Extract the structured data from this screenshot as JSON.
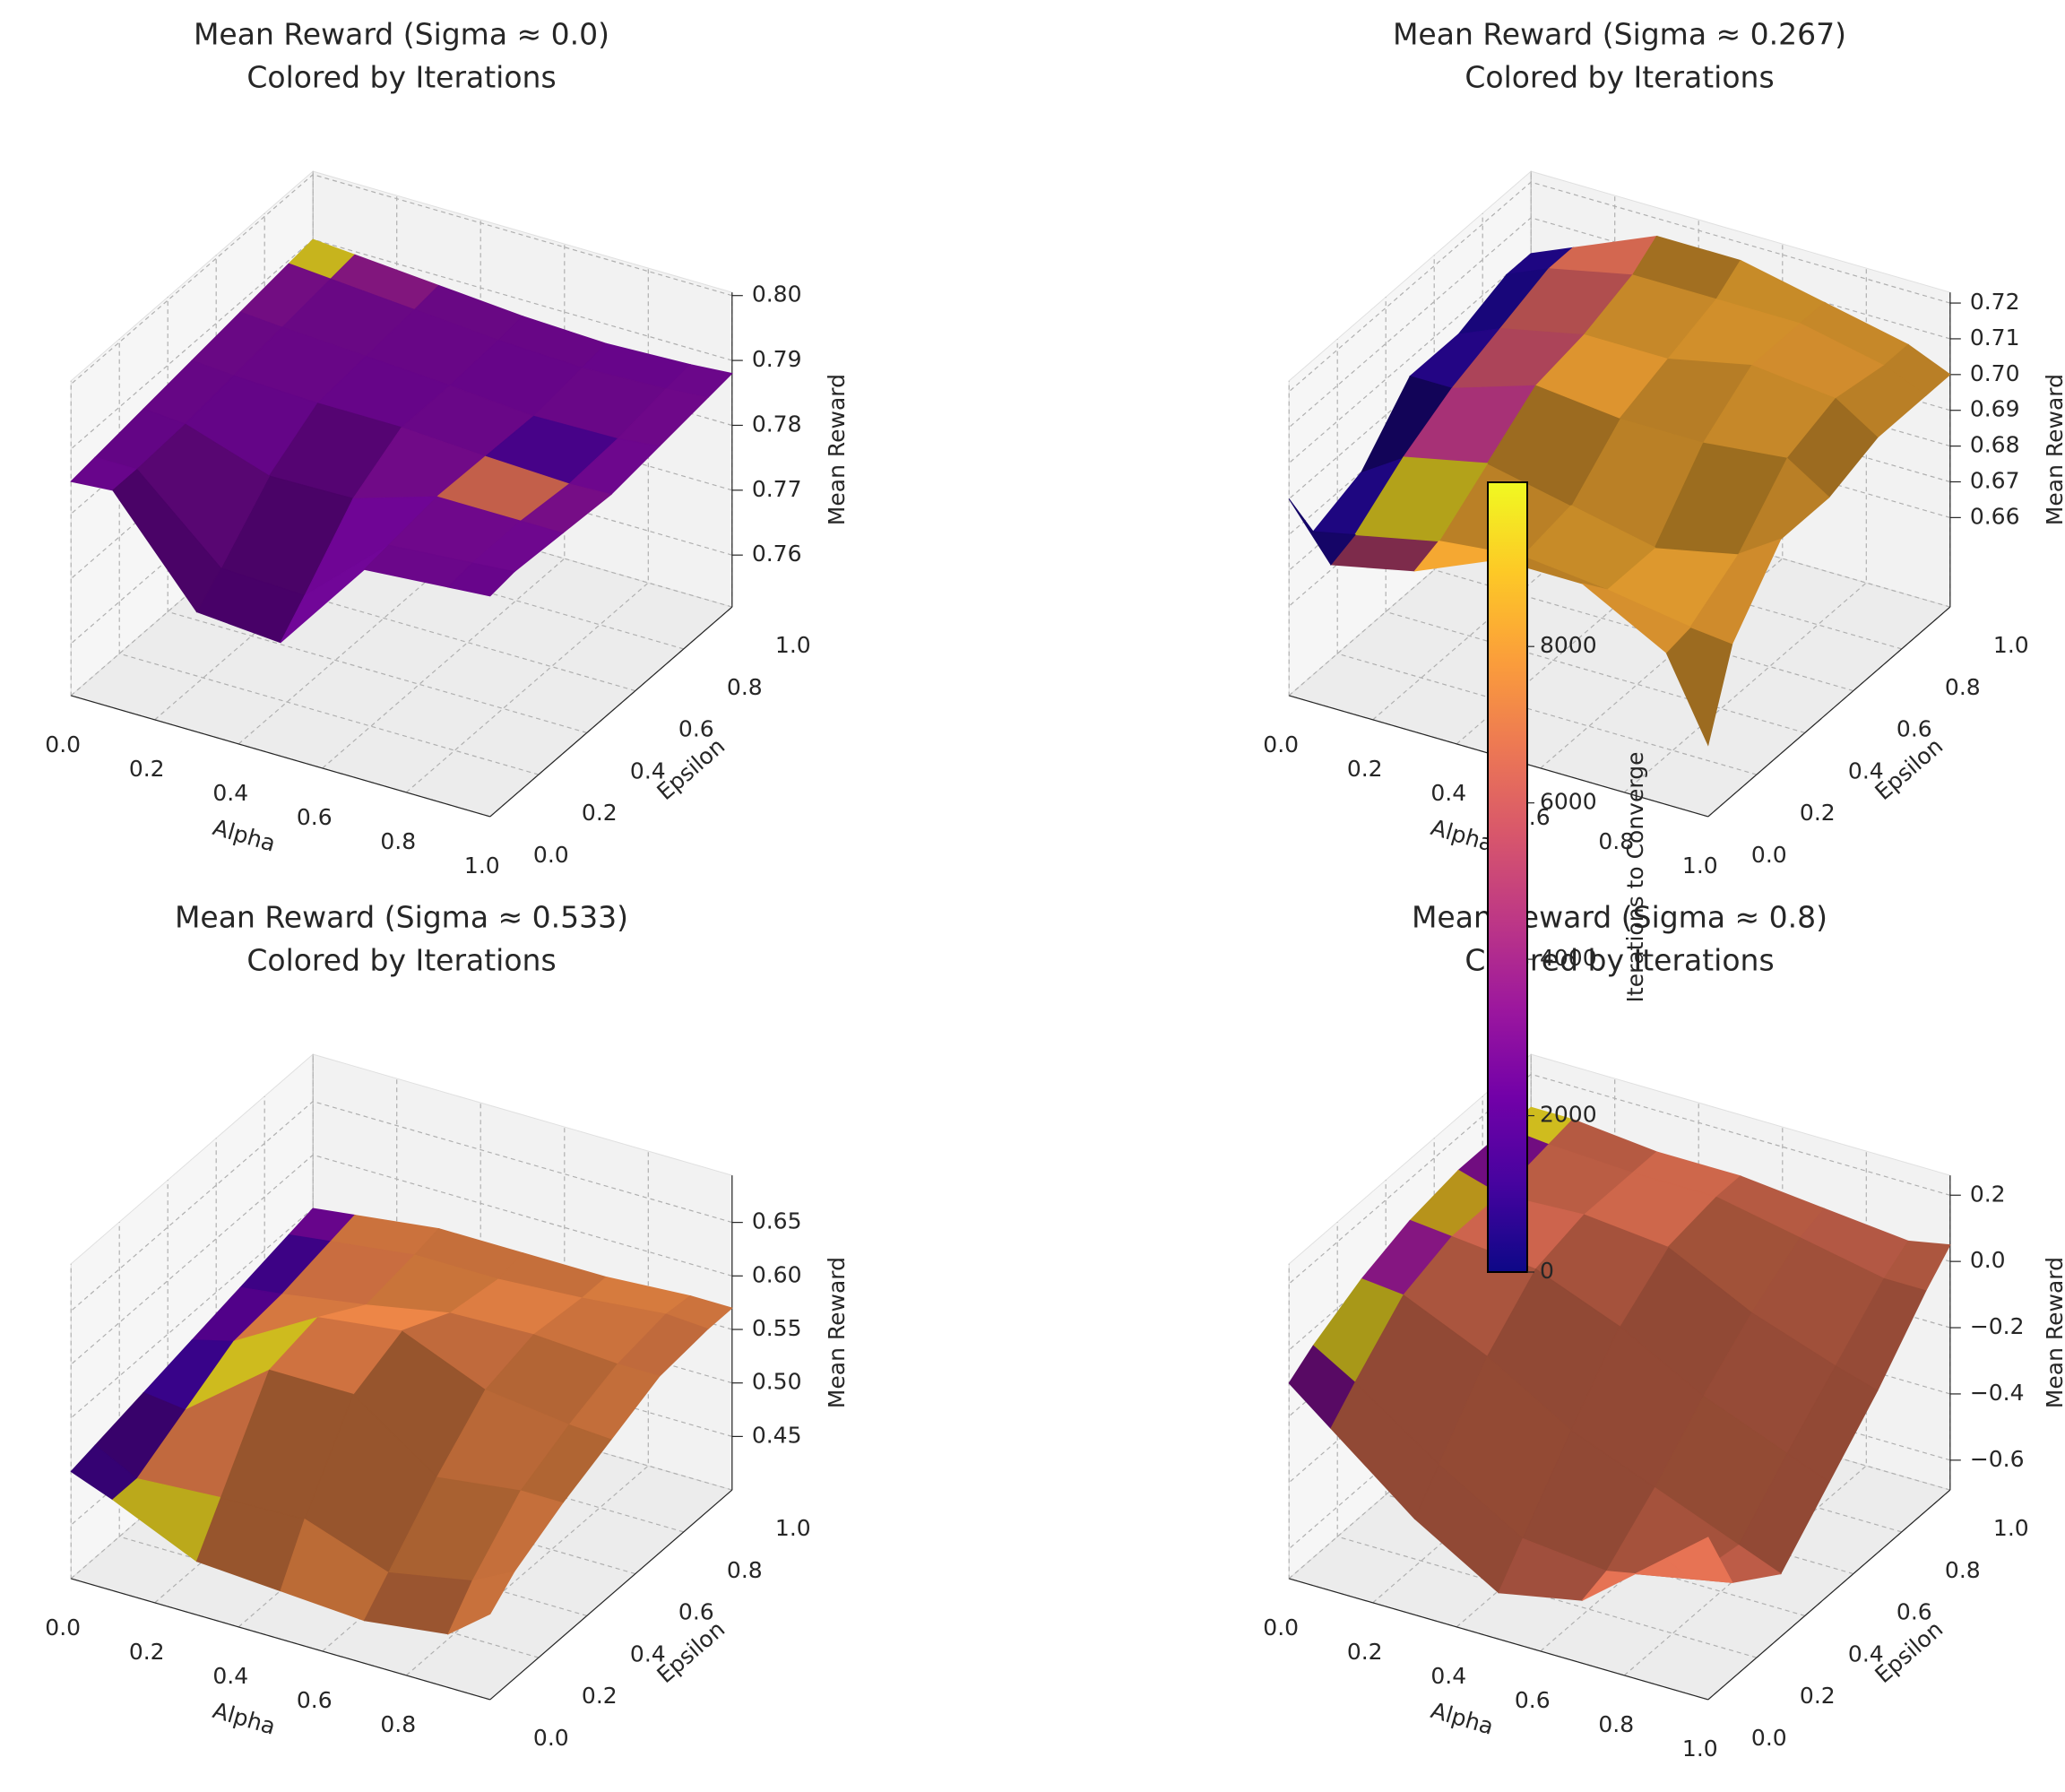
{
  "chart_data": [
    {
      "type": "surface3d",
      "title": "Mean Reward (Sigma ≈ 0.0)",
      "subtitle": "Colored by Iterations",
      "xlabel": "Alpha",
      "ylabel": "Epsilon",
      "zlabel": "Mean Reward",
      "x": [
        0,
        0.2,
        0.4,
        0.6,
        0.8,
        1.0
      ],
      "y": [
        0,
        0.2,
        0.4,
        0.6,
        0.8,
        1.0
      ],
      "values": [
        [
          0.785,
          0.786,
          0.755,
          0.784,
          0.785,
          0.786
        ],
        [
          0.786,
          0.785,
          0.77,
          0.785,
          0.786,
          0.787
        ],
        [
          0.787,
          0.786,
          0.786,
          0.787,
          0.786,
          0.785
        ],
        [
          0.788,
          0.787,
          0.787,
          0.786,
          0.784,
          0.786
        ],
        [
          0.789,
          0.788,
          0.787,
          0.786,
          0.786,
          0.787
        ],
        [
          0.79,
          0.789,
          0.788,
          0.787,
          0.787,
          0.788
        ]
      ],
      "color_values": [
        [
          2500,
          2400,
          2300,
          2500,
          2600,
          2500
        ],
        [
          2500,
          2600,
          2400,
          2500,
          2700,
          2600
        ],
        [
          2600,
          2500,
          2500,
          2800,
          6500,
          3000
        ],
        [
          2700,
          2600,
          2500,
          2600,
          1500,
          2600
        ],
        [
          3000,
          2700,
          2600,
          2500,
          2600,
          2700
        ],
        [
          9500,
          3500,
          2700,
          2600,
          2500,
          2600
        ]
      ],
      "xlim": [
        0,
        1
      ],
      "ylim": [
        0,
        1
      ],
      "zlim": [
        0.752,
        0.8005
      ],
      "xticks": [
        {
          "value": 0,
          "label": "0.0"
        },
        0.2,
        0.4,
        0.6,
        0.8,
        {
          "value": 1,
          "label": "1.0"
        }
      ],
      "yticks": [
        {
          "value": 0,
          "label": "0.0"
        },
        0.2,
        0.4,
        0.6,
        0.8,
        {
          "value": 1,
          "label": "1.0"
        }
      ],
      "zticks": [
        0.76,
        0.77,
        0.78,
        0.79,
        {
          "value": 0.8,
          "label": "0.80"
        }
      ],
      "grid": true
    },
    {
      "type": "surface3d",
      "title": "Mean Reward (Sigma ≈ 0.267)",
      "subtitle": "Colored by Iterations",
      "xlabel": "Alpha",
      "ylabel": "Epsilon",
      "zlabel": "Mean Reward",
      "x": [
        0,
        0.2,
        0.4,
        0.6,
        0.8,
        1.0
      ],
      "y": [
        0,
        0.2,
        0.4,
        0.6,
        0.8,
        1.0
      ],
      "values": [
        [
          0.69,
          0.66,
          0.7,
          0.68,
          0.7,
          0.655
        ],
        [
          0.66,
          0.7,
          0.67,
          0.69,
          0.66,
          0.7
        ],
        [
          0.7,
          0.69,
          0.71,
          0.68,
          0.7,
          0.69
        ],
        [
          0.69,
          0.7,
          0.71,
          0.7,
          0.72,
          0.7
        ],
        [
          0.7,
          0.71,
          0.7,
          0.71,
          0.71,
          0.7
        ],
        [
          0.7,
          0.71,
          0.72,
          0.71,
          0.71,
          0.7
        ]
      ],
      "color_values": [
        [
          300,
          5000,
          8200,
          8200,
          8100,
          8200
        ],
        [
          400,
          9500,
          8200,
          8300,
          8200,
          8100
        ],
        [
          300,
          4500,
          8200,
          8200,
          8300,
          8200
        ],
        [
          500,
          5500,
          8100,
          8200,
          8200,
          8200
        ],
        [
          300,
          6000,
          8200,
          8200,
          8100,
          8200
        ],
        [
          400,
          6500,
          8200,
          8300,
          8200,
          8200
        ]
      ],
      "xlim": [
        0,
        1
      ],
      "ylim": [
        0,
        1
      ],
      "zlim": [
        0.635,
        0.723
      ],
      "xticks": [
        {
          "value": 0,
          "label": "0.0"
        },
        0.2,
        0.4,
        0.6,
        0.8,
        {
          "value": 1,
          "label": "1.0"
        }
      ],
      "yticks": [
        {
          "value": 0,
          "label": "0.0"
        },
        0.2,
        0.4,
        0.6,
        0.8,
        {
          "value": 1,
          "label": "1.0"
        }
      ],
      "zticks": [
        0.66,
        0.67,
        0.68,
        0.69,
        {
          "value": 0.7,
          "label": "0.70"
        },
        0.71,
        0.72
      ],
      "grid": true
    },
    {
      "type": "surface3d",
      "title": "Mean Reward (Sigma ≈ 0.533)",
      "subtitle": "Colored by Iterations",
      "xlabel": "Alpha",
      "ylabel": "Epsilon",
      "zlabel": "Mean Reward",
      "x": [
        0,
        0.2,
        0.4,
        0.6,
        0.8,
        1.0
      ],
      "y": [
        0,
        0.2,
        0.4,
        0.6,
        0.8,
        1.0
      ],
      "values": [
        [
          0.5,
          0.47,
          0.43,
          0.46,
          0.42,
          0.48
        ],
        [
          0.51,
          0.46,
          0.6,
          0.48,
          0.5,
          0.52
        ],
        [
          0.52,
          0.55,
          0.67,
          0.53,
          0.55,
          0.53
        ],
        [
          0.53,
          0.54,
          0.56,
          0.6,
          0.55,
          0.56
        ],
        [
          0.54,
          0.55,
          0.56,
          0.55,
          0.58,
          0.57
        ],
        [
          0.55,
          0.56,
          0.57,
          0.56,
          0.57,
          0.57
        ]
      ],
      "color_values": [
        [
          1200,
          9500,
          7200,
          7300,
          7100,
          7200
        ],
        [
          1500,
          7000,
          7200,
          7200,
          7300,
          7200
        ],
        [
          1000,
          9500,
          7100,
          7200,
          7200,
          7300
        ],
        [
          1800,
          7200,
          7200,
          7100,
          7200,
          7200
        ],
        [
          1200,
          7000,
          7300,
          7200,
          7200,
          7100
        ],
        [
          2500,
          7200,
          7200,
          7200,
          7300,
          7200
        ]
      ],
      "xlim": [
        0,
        1
      ],
      "ylim": [
        0,
        1
      ],
      "zlim": [
        0.4,
        0.694
      ],
      "xticks": [
        {
          "value": 0,
          "label": "0.0"
        },
        0.2,
        0.4,
        0.6,
        0.8
      ],
      "yticks": [
        {
          "value": 0,
          "label": "0.0"
        },
        0.2,
        0.4,
        0.6,
        0.8,
        {
          "value": 1,
          "label": "1.0"
        }
      ],
      "zticks": [
        0.45,
        {
          "value": 0.5,
          "label": "0.50"
        },
        0.55,
        {
          "value": 0.6,
          "label": "0.60"
        },
        0.65
      ],
      "grid": true
    },
    {
      "type": "surface3d",
      "title": "Mean Reward (Sigma ≈ 0.8)",
      "subtitle": "Colored by Iterations",
      "xlabel": "Alpha",
      "ylabel": "Epsilon",
      "zlabel": "Mean Reward",
      "x": [
        0,
        0.2,
        0.4,
        0.6,
        0.8,
        1.0
      ],
      "y": [
        0,
        0.2,
        0.4,
        0.6,
        0.8,
        1.0
      ],
      "values": [
        [
          -0.1,
          -0.3,
          -0.5,
          -0.6,
          -0.4,
          -0.2
        ],
        [
          0.0,
          -0.1,
          -0.3,
          -0.4,
          -0.5,
          -0.6
        ],
        [
          0.05,
          0.1,
          -0.1,
          -0.2,
          -0.3,
          -0.4
        ],
        [
          0.1,
          0.0,
          0.15,
          -0.1,
          -0.2,
          -0.3
        ],
        [
          0.1,
          0.05,
          0.1,
          0.05,
          -0.05,
          -0.1
        ],
        [
          0.1,
          0.1,
          0.05,
          0.1,
          0.0,
          0.05
        ]
      ],
      "color_values": [
        [
          3000,
          6600,
          6600,
          6500,
          6600,
          6600
        ],
        [
          9500,
          6600,
          6700,
          6600,
          6600,
          6500
        ],
        [
          3500,
          6600,
          6600,
          6600,
          6700,
          6600
        ],
        [
          9000,
          6500,
          6600,
          6600,
          6600,
          6600
        ],
        [
          3000,
          6600,
          6600,
          6700,
          6600,
          6600
        ],
        [
          9500,
          6600,
          6600,
          6600,
          6500,
          6600
        ]
      ],
      "xlim": [
        0,
        1
      ],
      "ylim": [
        0,
        1
      ],
      "zlim": [
        -0.69,
        0.26
      ],
      "xticks": [
        {
          "value": 0,
          "label": "0.0"
        },
        0.2,
        0.4,
        0.6,
        0.8,
        {
          "value": 1,
          "label": "1.0"
        }
      ],
      "yticks": [
        {
          "value": 0,
          "label": "0.0"
        },
        0.2,
        0.4,
        0.6,
        0.8,
        {
          "value": 1,
          "label": "1.0"
        }
      ],
      "zticks": [
        {
          "value": -0.6,
          "label": "−0.6"
        },
        {
          "value": -0.4,
          "label": "−0.4"
        },
        {
          "value": -0.2,
          "label": "−0.2"
        },
        {
          "value": 0,
          "label": "0.0"
        },
        0.2
      ],
      "grid": true
    }
  ],
  "colorbar": {
    "label": "Iterations to Converge",
    "lim": [
      0,
      10100
    ],
    "ticks": [
      0,
      2000,
      4000,
      6000,
      8000
    ],
    "colors": [
      "#0d0887",
      "#46039f",
      "#7201a8",
      "#9c179e",
      "#bd3786",
      "#d8576b",
      "#ed7953",
      "#fb9f3a",
      "#fdca26",
      "#f0f921"
    ]
  }
}
